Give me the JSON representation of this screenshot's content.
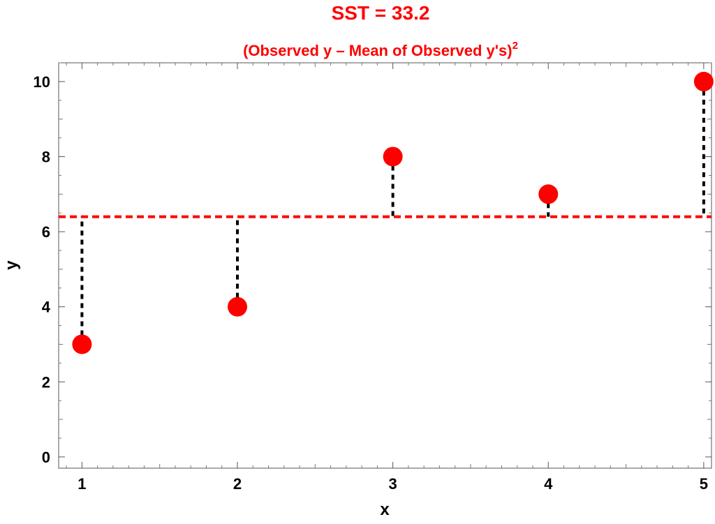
{
  "chart_data": {
    "type": "scatter",
    "title": "SST = 33.2",
    "subtitle": "(Observed y – Mean of Observed y's)",
    "subtitle_superscript": "2",
    "xlabel": "x",
    "ylabel": "y",
    "xlim": [
      0.85,
      5.05
    ],
    "ylim": [
      -0.3,
      10.5
    ],
    "x_ticks": [
      1,
      2,
      3,
      4,
      5
    ],
    "y_ticks": [
      0,
      2,
      4,
      6,
      8,
      10
    ],
    "series": [
      {
        "x": [
          1,
          2,
          3,
          4,
          5
        ],
        "y": [
          3,
          4,
          8,
          7,
          10
        ]
      }
    ],
    "mean_line": 6.4,
    "grid": false,
    "colors": {
      "points": "#ff0000",
      "mean_line": "#ff0000",
      "residuals": "#000000",
      "title": "#ff0000"
    }
  }
}
